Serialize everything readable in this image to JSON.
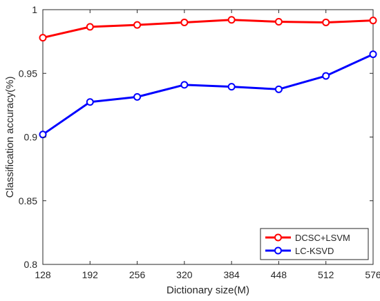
{
  "chart_data": {
    "type": "line",
    "title": "",
    "xlabel": "Dictionary size(M)",
    "ylabel": "Classification accuracy(%)",
    "x": [
      128,
      192,
      256,
      320,
      384,
      448,
      512,
      576
    ],
    "xticks": [
      "128",
      "192",
      "256",
      "320",
      "384",
      "448",
      "512",
      "576"
    ],
    "xlim": [
      128,
      576
    ],
    "yticks": [
      "0.8",
      "0.85",
      "0.9",
      "0.95",
      "1"
    ],
    "ylim": [
      0.8,
      1.0
    ],
    "grid": false,
    "legend_position": "bottom-right",
    "series": [
      {
        "name": "DCSC+LSVM",
        "color": "#ff0000",
        "marker": "circle",
        "values": [
          0.978,
          0.9865,
          0.988,
          0.99,
          0.992,
          0.9905,
          0.99,
          0.9915
        ]
      },
      {
        "name": "LC-KSVD",
        "color": "#0000ff",
        "marker": "circle",
        "values": [
          0.902,
          0.9275,
          0.9315,
          0.941,
          0.9395,
          0.9375,
          0.948,
          0.965
        ]
      }
    ]
  }
}
